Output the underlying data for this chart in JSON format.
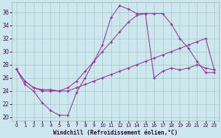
{
  "xlabel": "Windchill (Refroidissement éolien,°C)",
  "xlim": [
    -0.5,
    23.5
  ],
  "ylim": [
    19.5,
    37.5
  ],
  "yticks": [
    20,
    22,
    24,
    26,
    28,
    30,
    32,
    34,
    36
  ],
  "xticks": [
    0,
    1,
    2,
    3,
    4,
    5,
    6,
    7,
    8,
    9,
    10,
    11,
    12,
    13,
    14,
    15,
    16,
    17,
    18,
    19,
    20,
    21,
    22,
    23
  ],
  "bg_color": "#cce8ee",
  "grid_color": "#aacccc",
  "line_color": "#993399",
  "line1_x": [
    0,
    1,
    2,
    3,
    4,
    5,
    6,
    7,
    8,
    9,
    10,
    11,
    12,
    13,
    14,
    15,
    16,
    17,
    18,
    19,
    20,
    21,
    22,
    23
  ],
  "line1_y": [
    27.3,
    25.0,
    24.0,
    22.2,
    21.0,
    20.3,
    20.3,
    23.8,
    26.0,
    28.5,
    31.0,
    35.2,
    37.0,
    36.5,
    35.8,
    35.8,
    35.8,
    35.8,
    34.2,
    32.0,
    30.5,
    28.5,
    26.8,
    26.8
  ],
  "line2_x": [
    0,
    1,
    2,
    3,
    4,
    5,
    6,
    7,
    8,
    9,
    10,
    11,
    12,
    13,
    14,
    15,
    16,
    17,
    18,
    19,
    20,
    21,
    22,
    23
  ],
  "line2_y": [
    27.3,
    25.5,
    24.5,
    24.2,
    24.2,
    24.0,
    24.5,
    25.5,
    27.0,
    28.5,
    30.0,
    31.5,
    33.0,
    34.5,
    35.5,
    35.8,
    26.0,
    27.0,
    27.5,
    27.2,
    27.5,
    28.0,
    27.5,
    27.2
  ],
  "line3_x": [
    0,
    1,
    2,
    3,
    4,
    5,
    6,
    7,
    8,
    9,
    10,
    11,
    12,
    13,
    14,
    15,
    16,
    17,
    18,
    19,
    20,
    21,
    22,
    23
  ],
  "line3_y": [
    27.3,
    25.5,
    24.5,
    24.0,
    24.0,
    24.0,
    24.0,
    24.5,
    25.0,
    25.5,
    26.0,
    26.5,
    27.0,
    27.5,
    28.0,
    28.5,
    29.0,
    29.5,
    30.0,
    30.5,
    31.0,
    31.5,
    32.0,
    27.2
  ]
}
